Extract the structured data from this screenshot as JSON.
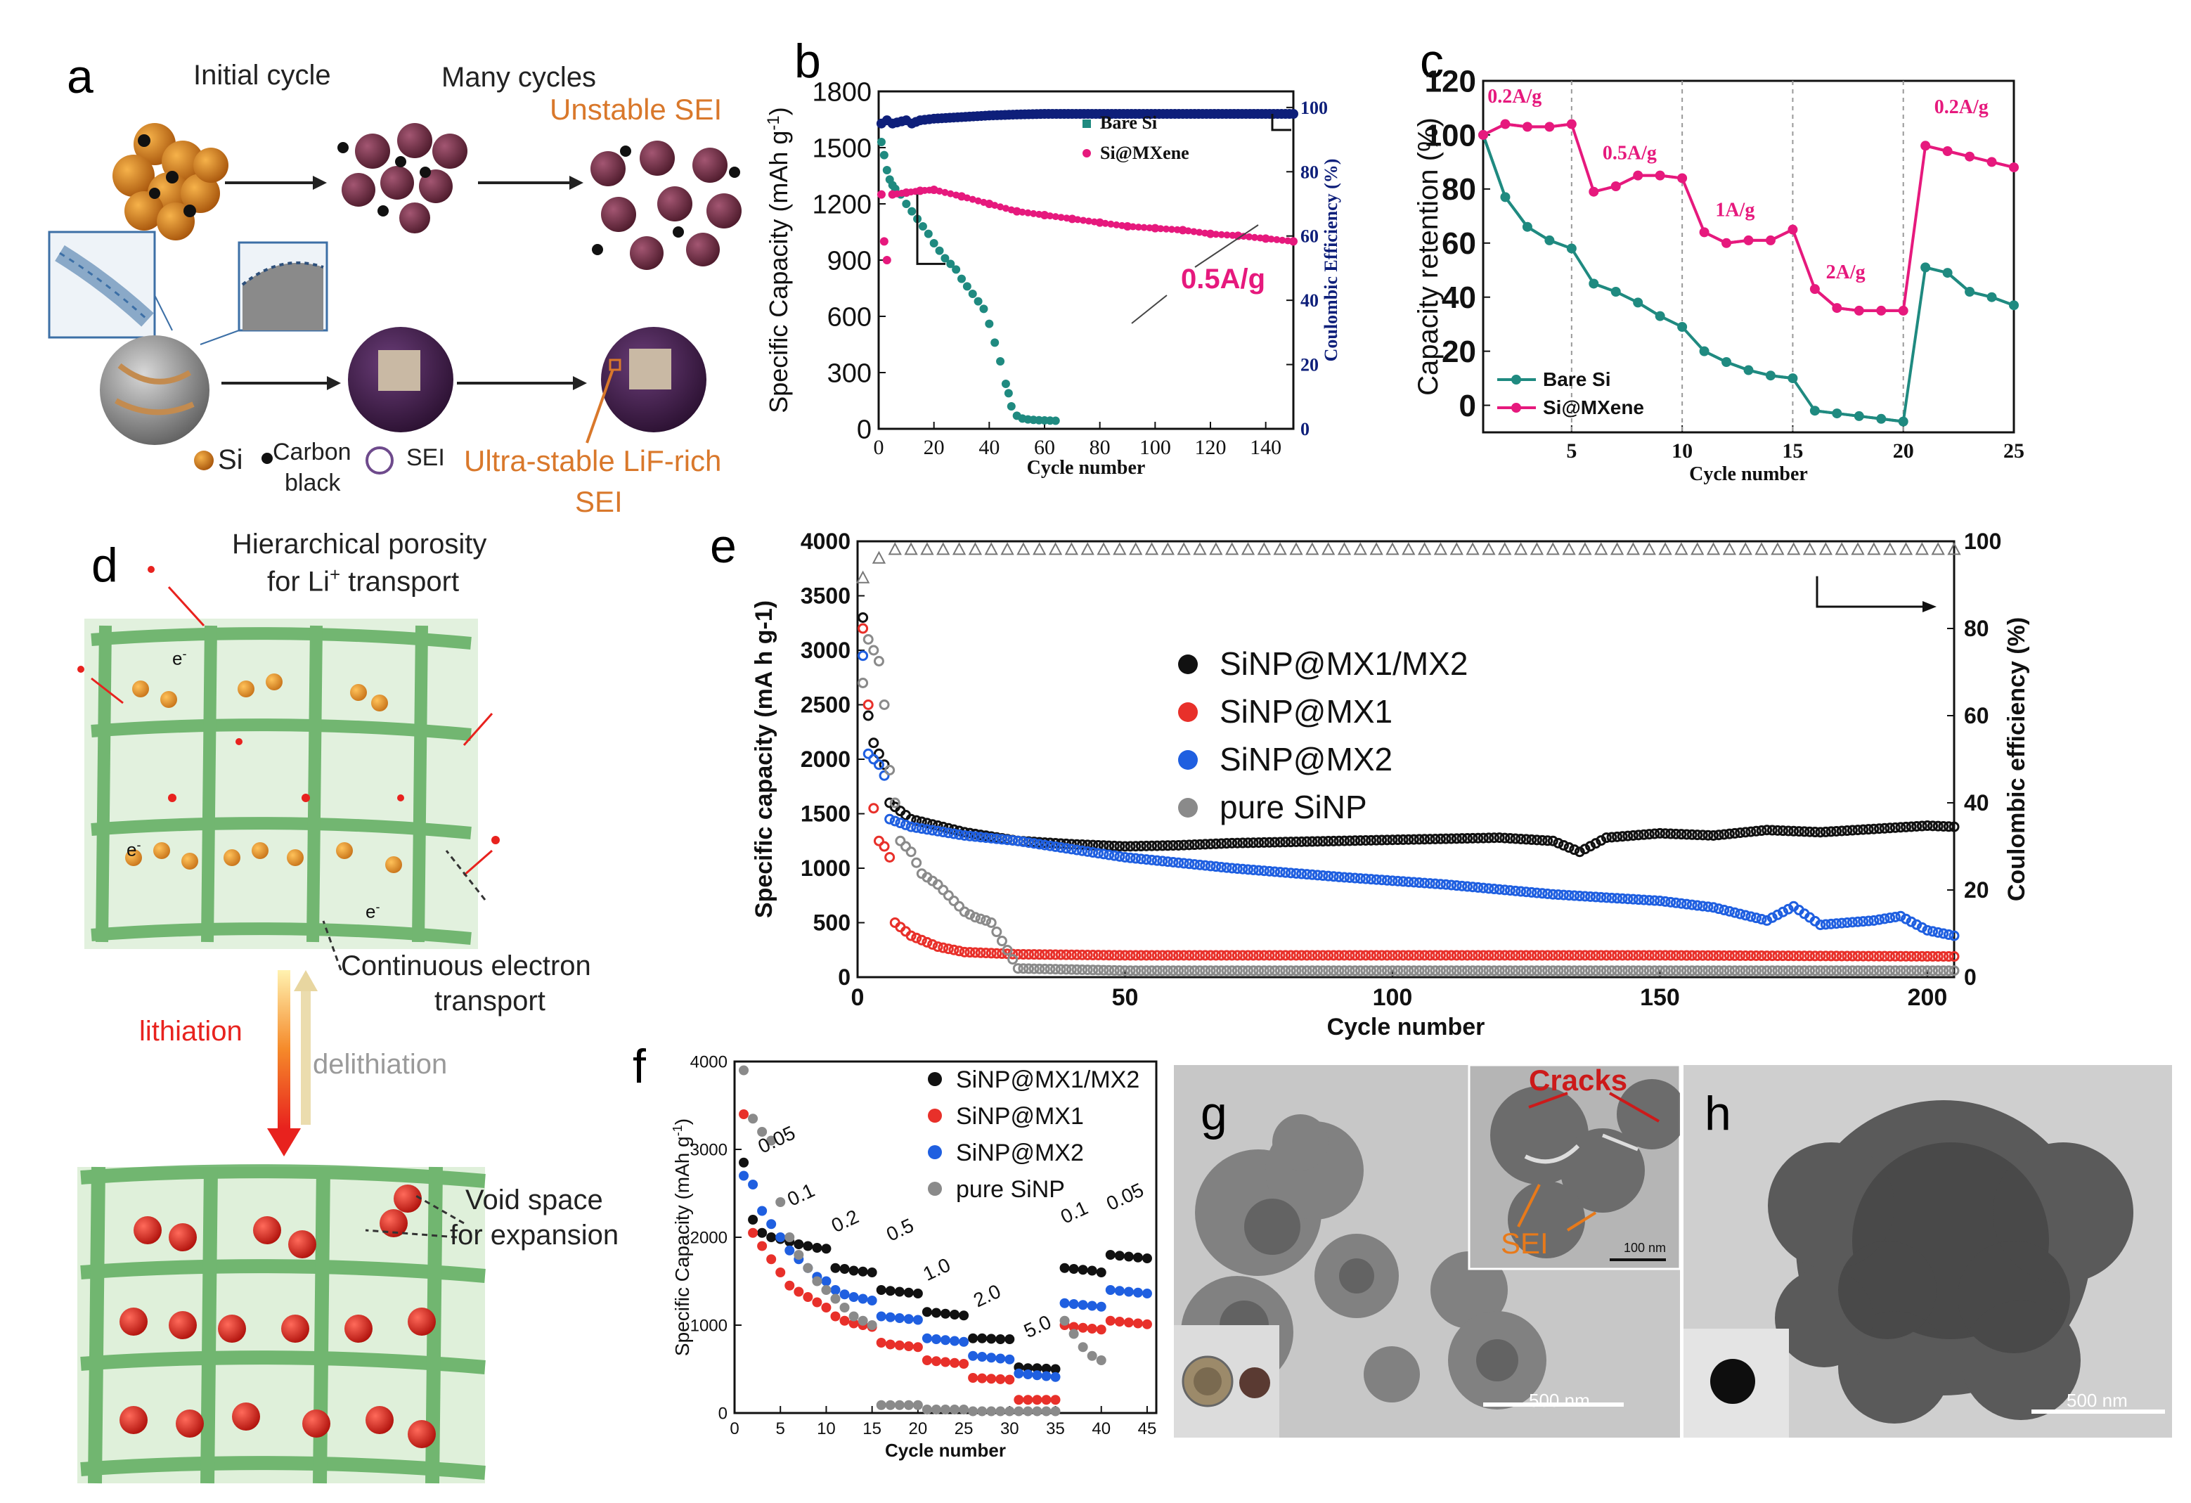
{
  "panels": {
    "a": {
      "label": "a",
      "initial_cycle": "Initial cycle",
      "many_cycles": "Many cycles",
      "unstable_sei": "Unstable SEI",
      "ultra_stable": "Ultra-stable LiF-rich",
      "sei": "SEI",
      "legend_si": "Si",
      "legend_carbon": "Carbon",
      "legend_black": "black",
      "legend_sei": "SEI",
      "colors": {
        "si": "#c8741a",
        "sei_particle": "#6e2a3e",
        "mxene_sphere": "#3c1f45",
        "accent": "#d9782b"
      }
    },
    "d": {
      "label": "d",
      "porosity_1": "Hierarchical porosity",
      "porosity_2": "for Li",
      "porosity_sup": "+",
      "porosity_3": " transport",
      "electron_1": "Continuous electron",
      "electron_2": "transport",
      "lithiation": "lithiation",
      "delithiation": "delithiation",
      "void_1": "Void space",
      "void_2": "for expansion",
      "electron_symbol": "e",
      "electron_sup": "-"
    },
    "g": {
      "label": "g",
      "cracks": "Cracks",
      "sei": "SEI",
      "scale_main": "500 nm",
      "scale_inset": "100 nm"
    },
    "h": {
      "label": "h",
      "scale_main": "500 nm"
    }
  },
  "chart_data": [
    {
      "id": "b",
      "label": "b",
      "type": "scatter",
      "xlabel": "Cycle number",
      "ylabel": "Specific Capacity (mAh g",
      "ylabel_sup": "-1",
      "ylabel_end": ")",
      "y2label": "Coulombic Efficiency (%)",
      "xlim": [
        0,
        150
      ],
      "ylim": [
        0,
        1800
      ],
      "y2lim": [
        0,
        105
      ],
      "xticks": [
        0,
        20,
        40,
        60,
        80,
        100,
        120,
        140
      ],
      "yticks": [
        0,
        300,
        600,
        900,
        1200,
        1500,
        1800
      ],
      "y2ticks": [
        0,
        20,
        40,
        60,
        80,
        100
      ],
      "annotation": "0.5A/g",
      "legend": [
        "Bare Si",
        "Si@MXene"
      ],
      "series": [
        {
          "name": "Bare Si",
          "color": "#1f8a80",
          "x": [
            1,
            2,
            3,
            4,
            5,
            6,
            8,
            10,
            12,
            14,
            16,
            18,
            20,
            22,
            24,
            26,
            28,
            30,
            32,
            34,
            36,
            38,
            40,
            42,
            44,
            46,
            47,
            48,
            50,
            52,
            54,
            56,
            58,
            60,
            62,
            64
          ],
          "values": [
            1530,
            1460,
            1380,
            1330,
            1300,
            1280,
            1250,
            1200,
            1160,
            1120,
            1080,
            1040,
            990,
            950,
            910,
            880,
            850,
            800,
            760,
            720,
            680,
            640,
            560,
            460,
            360,
            240,
            190,
            120,
            70,
            55,
            50,
            48,
            46,
            45,
            44,
            43
          ]
        },
        {
          "name": "Si@MXene",
          "color": "#e6197d",
          "x": [
            1,
            2,
            3,
            5,
            10,
            15,
            20,
            30,
            40,
            50,
            60,
            70,
            80,
            90,
            100,
            110,
            120,
            130,
            140,
            150
          ],
          "values": [
            1250,
            1000,
            900,
            1250,
            1260,
            1270,
            1275,
            1240,
            1200,
            1160,
            1140,
            1120,
            1100,
            1080,
            1070,
            1060,
            1040,
            1030,
            1015,
            1000
          ]
        },
        {
          "name": "Coulombic efficiency",
          "color": "#0e1f7a",
          "axis": "right",
          "x": [
            1,
            3,
            5,
            10,
            12,
            15,
            20,
            30,
            40,
            50,
            60,
            70,
            80,
            90,
            100,
            110,
            120,
            130,
            140,
            150
          ],
          "values": [
            95,
            96,
            95,
            96,
            95,
            96,
            96.5,
            97,
            97.5,
            97.8,
            98,
            98,
            98,
            98,
            98,
            98,
            98,
            98,
            98,
            98
          ]
        }
      ]
    },
    {
      "id": "c",
      "label": "c",
      "type": "line",
      "xlabel": "Cycle number",
      "ylabel": "Capacity retention (%)",
      "xlim": [
        1,
        25
      ],
      "ylim": [
        -10,
        120
      ],
      "xticks": [
        5,
        10,
        15,
        20,
        25
      ],
      "yticks": [
        0,
        20,
        40,
        60,
        80,
        100,
        120
      ],
      "rates": [
        "0.2A/g",
        "0.5A/g",
        "1A/g",
        "2A/g",
        "0.2A/g"
      ],
      "rate_boundaries": [
        5,
        10,
        15,
        20
      ],
      "legend": [
        "Bare Si",
        "Si@MXene"
      ],
      "series": [
        {
          "name": "Bare Si",
          "color": "#1f8a80",
          "x": [
            1,
            2,
            3,
            4,
            5,
            6,
            7,
            8,
            9,
            10,
            11,
            12,
            13,
            14,
            15,
            16,
            17,
            18,
            19,
            20,
            21,
            22,
            23,
            24,
            25
          ],
          "values": [
            100,
            77,
            66,
            61,
            58,
            45,
            42,
            38,
            33,
            29,
            20,
            16,
            13,
            11,
            10,
            -2,
            -3,
            -4,
            -5,
            -6,
            51,
            49,
            42,
            40,
            37
          ]
        },
        {
          "name": "Si@MXene",
          "color": "#e6197d",
          "x": [
            1,
            2,
            3,
            4,
            5,
            6,
            7,
            8,
            9,
            10,
            11,
            12,
            13,
            14,
            15,
            16,
            17,
            18,
            19,
            20,
            21,
            22,
            23,
            24,
            25
          ],
          "values": [
            100,
            104,
            103,
            103,
            104,
            79,
            81,
            85,
            85,
            84,
            64,
            60,
            61,
            61,
            65,
            43,
            36,
            35,
            35,
            35,
            96,
            94,
            92,
            90,
            88
          ]
        }
      ]
    },
    {
      "id": "e",
      "label": "e",
      "type": "scatter",
      "xlabel": "Cycle number",
      "ylabel": "Specific capacity (mA h g-1)",
      "y2label": "Coulombic efficiency (%)",
      "xlim": [
        0,
        205
      ],
      "ylim": [
        0,
        4000
      ],
      "y2lim": [
        0,
        100
      ],
      "xticks": [
        0,
        50,
        100,
        150,
        200
      ],
      "yticks": [
        0,
        500,
        1000,
        1500,
        2000,
        2500,
        3000,
        3500,
        4000
      ],
      "y2ticks": [
        0,
        20,
        40,
        60,
        80,
        100
      ],
      "legend": [
        "SiNP@MX1/MX2",
        "SiNP@MX1",
        "SiNP@MX2",
        "pure SiNP"
      ],
      "series": [
        {
          "name": "SiNP@MX1/MX2",
          "color": "#111111",
          "x": [
            1,
            2,
            3,
            4,
            5,
            6,
            10,
            20,
            30,
            40,
            50,
            60,
            70,
            80,
            90,
            100,
            110,
            120,
            130,
            135,
            140,
            150,
            160,
            170,
            180,
            190,
            200,
            205
          ],
          "values": [
            3300,
            2400,
            2150,
            2050,
            1950,
            1600,
            1450,
            1330,
            1250,
            1220,
            1200,
            1210,
            1230,
            1240,
            1250,
            1260,
            1270,
            1280,
            1250,
            1150,
            1280,
            1320,
            1300,
            1350,
            1330,
            1360,
            1390,
            1380
          ]
        },
        {
          "name": "SiNP@MX1",
          "color": "#e8302a",
          "x": [
            1,
            2,
            3,
            4,
            5,
            6,
            7,
            10,
            15,
            20,
            30,
            50,
            100,
            150,
            205
          ],
          "values": [
            3200,
            2500,
            1550,
            1250,
            1200,
            1100,
            500,
            380,
            280,
            230,
            210,
            200,
            200,
            200,
            190
          ]
        },
        {
          "name": "SiNP@MX2",
          "color": "#1f5fe0",
          "x": [
            1,
            2,
            3,
            4,
            5,
            6,
            10,
            20,
            30,
            50,
            70,
            90,
            110,
            130,
            150,
            160,
            170,
            175,
            180,
            190,
            195,
            200,
            205
          ],
          "values": [
            2950,
            2050,
            2000,
            1950,
            1850,
            1450,
            1380,
            1300,
            1250,
            1100,
            1000,
            920,
            850,
            760,
            700,
            640,
            520,
            650,
            480,
            520,
            560,
            430,
            380
          ]
        },
        {
          "name": "pure SiNP",
          "color": "#8a8a8a",
          "x": [
            1,
            2,
            3,
            4,
            5,
            6,
            7,
            8,
            10,
            12,
            15,
            18,
            20,
            22,
            24,
            25,
            30,
            50,
            100,
            150,
            205
          ],
          "values": [
            2700,
            3100,
            3000,
            2900,
            2500,
            1900,
            1600,
            1250,
            1150,
            950,
            850,
            700,
            600,
            550,
            520,
            500,
            80,
            60,
            60,
            60,
            60
          ]
        }
      ]
    },
    {
      "id": "f",
      "label": "f",
      "type": "scatter",
      "xlabel": "Cycle number",
      "ylabel": "Specific Capacity (mAh g",
      "ylabel_sup": "-1",
      "ylabel_end": ")",
      "xlim": [
        0,
        46
      ],
      "ylim": [
        0,
        4000
      ],
      "xticks": [
        0,
        5,
        10,
        15,
        20,
        25,
        30,
        35,
        40,
        45
      ],
      "yticks": [
        0,
        1000,
        2000,
        3000,
        4000
      ],
      "rate_labels": [
        "0.05",
        "0.1",
        "0.2",
        "0.5",
        "1.0",
        "2.0",
        "5.0",
        "0.1",
        "0.05"
      ],
      "legend": [
        "SiNP@MX1/MX2",
        "SiNP@MX1",
        "SiNP@MX2",
        "pure SiNP"
      ],
      "series": [
        {
          "name": "SiNP@MX1/MX2",
          "color": "#111111",
          "x": [
            1,
            2,
            3,
            4,
            5,
            6,
            7,
            8,
            9,
            10,
            11,
            12,
            13,
            14,
            15,
            16,
            17,
            18,
            19,
            20,
            21,
            22,
            23,
            24,
            25,
            26,
            27,
            28,
            29,
            30,
            31,
            32,
            33,
            34,
            35,
            36,
            37,
            38,
            39,
            40,
            41,
            42,
            43,
            44,
            45
          ],
          "values": [
            2850,
            2200,
            2050,
            2000,
            1980,
            1950,
            1920,
            1900,
            1880,
            1870,
            1650,
            1640,
            1620,
            1610,
            1600,
            1400,
            1390,
            1380,
            1370,
            1360,
            1150,
            1140,
            1130,
            1120,
            1110,
            850,
            850,
            845,
            840,
            840,
            520,
            510,
            510,
            505,
            500,
            1650,
            1640,
            1630,
            1620,
            1600,
            1800,
            1790,
            1780,
            1770,
            1760
          ]
        },
        {
          "name": "SiNP@MX1",
          "color": "#e8302a",
          "x": [
            1,
            2,
            3,
            4,
            5,
            6,
            7,
            8,
            9,
            10,
            11,
            12,
            13,
            14,
            15,
            16,
            17,
            18,
            19,
            20,
            21,
            22,
            23,
            24,
            25,
            26,
            27,
            28,
            29,
            30,
            31,
            32,
            33,
            34,
            35,
            36,
            37,
            38,
            39,
            40,
            41,
            42,
            43,
            44,
            45
          ],
          "values": [
            3400,
            2050,
            1900,
            1750,
            1600,
            1450,
            1380,
            1320,
            1260,
            1200,
            1100,
            1050,
            1020,
            1000,
            980,
            800,
            780,
            770,
            760,
            750,
            600,
            590,
            580,
            570,
            560,
            400,
            395,
            390,
            385,
            380,
            150,
            150,
            150,
            150,
            150,
            1000,
            980,
            970,
            960,
            950,
            1050,
            1040,
            1030,
            1020,
            1010
          ]
        },
        {
          "name": "SiNP@MX2",
          "color": "#1f5fe0",
          "x": [
            1,
            2,
            3,
            4,
            5,
            6,
            7,
            8,
            9,
            10,
            11,
            12,
            13,
            14,
            15,
            16,
            17,
            18,
            19,
            20,
            21,
            22,
            23,
            24,
            25,
            26,
            27,
            28,
            29,
            30,
            31,
            32,
            33,
            34,
            35,
            36,
            37,
            38,
            39,
            40,
            41,
            42,
            43,
            44,
            45
          ],
          "values": [
            2700,
            2600,
            2300,
            2150,
            2000,
            1850,
            1750,
            1650,
            1550,
            1500,
            1400,
            1350,
            1320,
            1300,
            1280,
            1100,
            1090,
            1080,
            1070,
            1060,
            850,
            840,
            830,
            820,
            810,
            650,
            640,
            630,
            620,
            610,
            450,
            440,
            430,
            420,
            410,
            1250,
            1240,
            1230,
            1220,
            1210,
            1400,
            1390,
            1380,
            1370,
            1360
          ]
        },
        {
          "name": "pure SiNP",
          "color": "#8a8a8a",
          "x": [
            1,
            2,
            3,
            4,
            5,
            6,
            7,
            8,
            9,
            10,
            11,
            12,
            13,
            14,
            15,
            16,
            17,
            18,
            19,
            20,
            21,
            22,
            23,
            24,
            25,
            26,
            27,
            28,
            29,
            30,
            31,
            32,
            33,
            34,
            35,
            36,
            37,
            38,
            39,
            40,
            41,
            42,
            43,
            44,
            45
          ],
          "values": [
            3900,
            3350,
            3200,
            3100,
            2400,
            2000,
            1800,
            1650,
            1500,
            1400,
            1300,
            1200,
            1100,
            1050,
            1000,
            90,
            90,
            90,
            90,
            90,
            40,
            40,
            40,
            40,
            40,
            20,
            20,
            20,
            20,
            20,
            20,
            20,
            20,
            20,
            20,
            1050,
            900,
            750,
            650,
            600,
            null,
            null,
            null,
            null,
            null
          ]
        }
      ]
    }
  ]
}
